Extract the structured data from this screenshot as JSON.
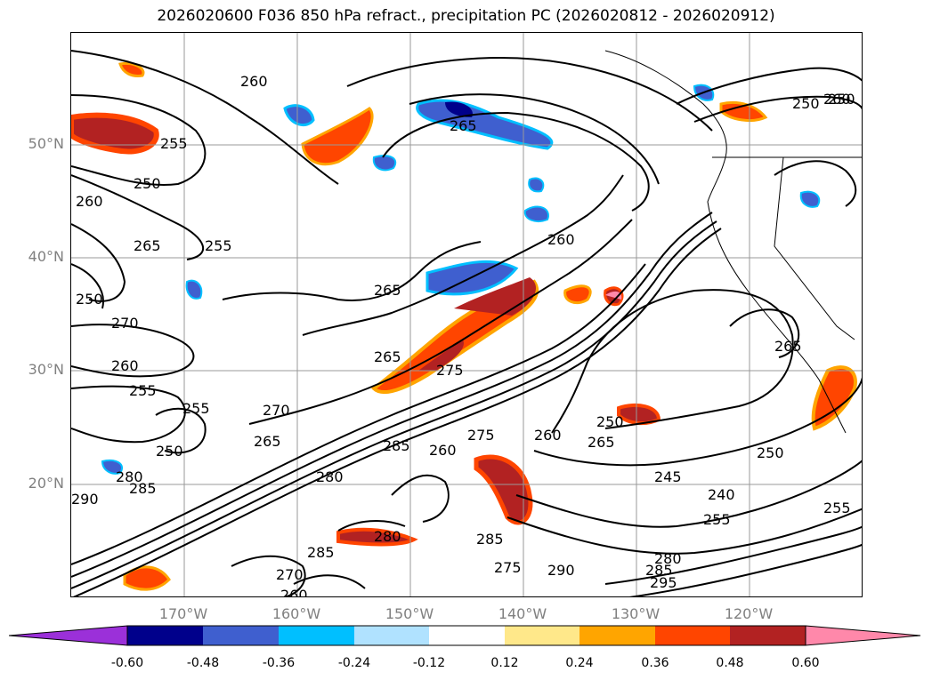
{
  "title": "2026020600 F036 850 hPa refract., precipitation PC (2026020812 - 2026020912)",
  "lat_labels": [
    "50°N",
    "40°N",
    "30°N",
    "20°N"
  ],
  "lon_labels": [
    "170°W",
    "160°W",
    "150°W",
    "140°W",
    "130°W",
    "120°W"
  ],
  "contour_labels": [
    "260",
    "250",
    "265",
    "255",
    "250",
    "260",
    "265",
    "255",
    "250",
    "270",
    "260",
    "255",
    "255",
    "250",
    "280",
    "285",
    "290",
    "270",
    "265",
    "260",
    "265",
    "265",
    "275",
    "285",
    "275",
    "260",
    "280",
    "250",
    "265",
    "260",
    "245",
    "240",
    "250",
    "255",
    "255",
    "280",
    "285",
    "290",
    "295",
    "275",
    "285",
    "280",
    "285",
    "270",
    "260",
    "250",
    "260",
    "265"
  ],
  "colorbar": {
    "ticks": [
      "-0.60",
      "-0.48",
      "-0.36",
      "-0.24",
      "-0.12",
      "0.12",
      "0.24",
      "0.36",
      "0.48",
      "0.60"
    ],
    "colors": [
      "#9b30d9",
      "#00008b",
      "#3f5fcf",
      "#00bfff",
      "#b0e2ff",
      "#ffffff",
      "#ffe88a",
      "#ffa500",
      "#ff4500",
      "#b22222",
      "#ff88aa"
    ]
  },
  "colors": {
    "contour": "#000000",
    "grid": "#999999",
    "coast": "#000000"
  }
}
